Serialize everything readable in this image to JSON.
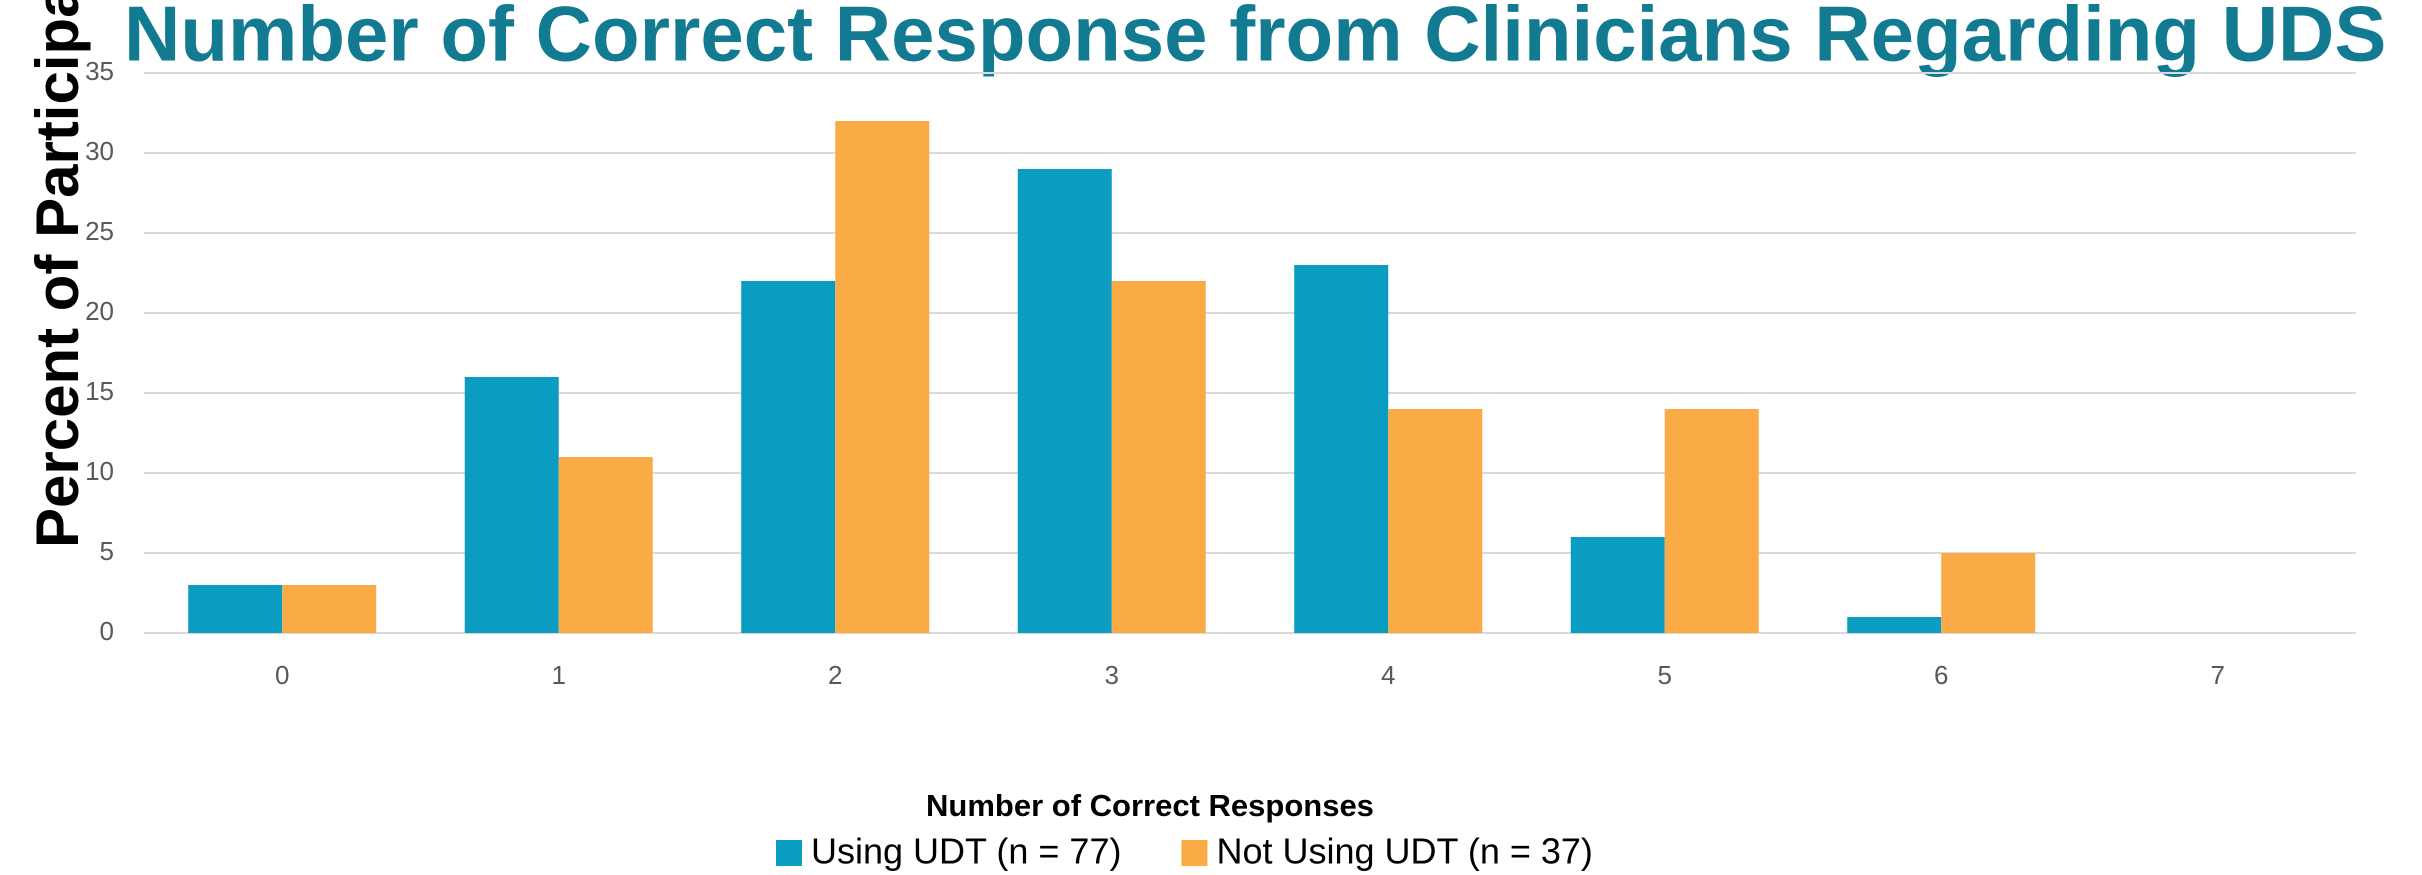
{
  "chart_data": {
    "type": "bar",
    "title": "Number of Correct Response from Clinicians Regarding UDS",
    "x_label": "Number of Correct Responses",
    "y_label": "Percent of Participants",
    "categories": [
      "0",
      "1",
      "2",
      "3",
      "4",
      "5",
      "6",
      "7"
    ],
    "series": [
      {
        "name": "Using UDT (n = 77)",
        "color": "#0b9cc2",
        "values": [
          3,
          16,
          22,
          29,
          23,
          6,
          1,
          0
        ]
      },
      {
        "name": "Not Using UDT (n = 37)",
        "color": "#fbab45",
        "values": [
          3,
          11,
          32,
          22,
          14,
          14,
          5,
          0
        ]
      }
    ],
    "ylim": [
      0,
      35
    ],
    "yticks": [
      0,
      5,
      10,
      15,
      20,
      25,
      30,
      35
    ],
    "grid": true,
    "legend": "bottom"
  }
}
